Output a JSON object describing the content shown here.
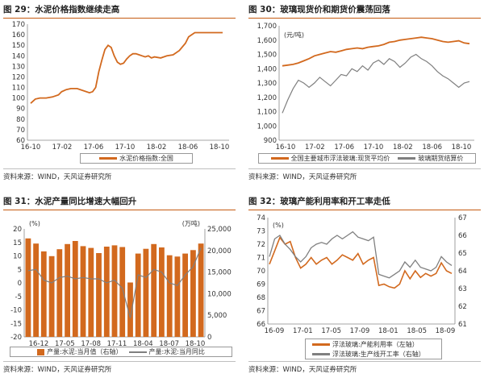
{
  "colors": {
    "orange": "#D2691E",
    "gray": "#7F7F7F",
    "accent_line": "#C55A11"
  },
  "panels": [
    {
      "title": "图 29：水泥价格指数继续走高",
      "source": "资料来源：WIND，天风证券研究所",
      "chart_data": {
        "type": "line",
        "ylim": [
          60,
          170
        ],
        "yticks": [
          "60",
          "70",
          "80",
          "90",
          "100",
          "110",
          "120",
          "130",
          "140",
          "150",
          "160",
          "170"
        ],
        "xticks": [
          "16-10",
          "17-02",
          "17-06",
          "17-10",
          "18-02",
          "18-06",
          "18-10"
        ],
        "series": [
          {
            "name": "水泥价格指数:全国",
            "color": "#D2691E",
            "x": [
              0,
              3,
              6,
              10,
              14,
              18,
              20,
              23,
              26,
              30,
              34,
              38,
              40,
              42,
              44,
              46,
              48,
              50,
              52,
              54,
              56,
              58,
              60,
              62,
              64,
              66,
              68,
              70,
              72,
              74,
              76,
              78,
              80,
              84,
              88,
              92,
              96,
              100,
              102,
              104,
              106,
              108,
              110,
              112,
              114,
              116,
              118,
              120,
              122,
              124
            ],
            "y": [
              95,
              99,
              100,
              100,
              101,
              103,
              106,
              108,
              109,
              109,
              107,
              105,
              106,
              110,
              125,
              136,
              146,
              150,
              148,
              140,
              134,
              132,
              133,
              137,
              140,
              142,
              142,
              141,
              140,
              139,
              140,
              138,
              139,
              138,
              140,
              141,
              145,
              152,
              158,
              160,
              162,
              162,
              162,
              162,
              162,
              162,
              162,
              162,
              162,
              162
            ]
          }
        ]
      }
    },
    {
      "title": "图 30：玻璃现货价和期货价震荡回落",
      "source": "资料来源：WIND，天风证券研究所",
      "chart_data": {
        "type": "line",
        "yunit": "(元/吨)",
        "ylim": [
          900,
          1700
        ],
        "yticks": [
          "900",
          "1,000",
          "1,100",
          "1,200",
          "1,300",
          "1,400",
          "1,500",
          "1,600",
          "1,700"
        ],
        "xticks": [
          "16-10",
          "17-02",
          "17-06",
          "17-10",
          "18-02",
          "18-06",
          "18-10"
        ],
        "series": [
          {
            "name": "全国主要城市浮法玻璃:现货平均价",
            "color": "#D2691E",
            "y": [
              1420,
              1425,
              1430,
              1440,
              1455,
              1470,
              1490,
              1500,
              1510,
              1520,
              1515,
              1525,
              1535,
              1540,
              1545,
              1540,
              1550,
              1555,
              1560,
              1570,
              1585,
              1590,
              1600,
              1605,
              1610,
              1615,
              1620,
              1615,
              1610,
              1600,
              1590,
              1585,
              1590,
              1595,
              1580,
              1575
            ]
          },
          {
            "name": "玻璃期货结算价",
            "color": "#7F7F7F",
            "y": [
              1090,
              1180,
              1260,
              1320,
              1300,
              1270,
              1300,
              1340,
              1310,
              1280,
              1320,
              1360,
              1350,
              1400,
              1380,
              1420,
              1390,
              1440,
              1460,
              1430,
              1470,
              1450,
              1410,
              1440,
              1480,
              1500,
              1470,
              1450,
              1420,
              1380,
              1350,
              1330,
              1300,
              1270,
              1300,
              1310
            ]
          }
        ]
      }
    },
    {
      "title": "图 31：水泥产量同比增速大幅回升",
      "source": "资料来源：WIND，天风证券研究所",
      "chart_data": {
        "type": "bar",
        "yunit_left": "(%)",
        "yunit_right": "(万吨)",
        "ylim_left": [
          -20,
          20
        ],
        "ylim_right": [
          0,
          25000
        ],
        "yticks_left": [
          "-20",
          "-15",
          "-10",
          "-5",
          "0",
          "5",
          "10",
          "15",
          "20"
        ],
        "yticks_right": [
          "0",
          "5,000",
          "10,000",
          "15,000",
          "20,000",
          "25,000"
        ],
        "xticks": [
          "16-12",
          "17-05",
          "17-08",
          "17-11",
          "18-04",
          "18-07",
          "18-10"
        ],
        "series": [
          {
            "name": "产量:水泥:当月值（右轴）",
            "color": "#D2691E",
            "axis": "right",
            "values": [
              22800,
              21600,
              19800,
              18700,
              20300,
              21500,
              22200,
              21000,
              20600,
              19400,
              20900,
              21200,
              20800,
              12600,
              19300,
              20400,
              21500,
              20700,
              18900,
              18600,
              19300,
              20100,
              21600
            ]
          },
          {
            "name": "产量:水泥:当月同比",
            "color": "#7F7F7F",
            "axis": "left",
            "values": [
              4.5,
              5,
              1,
              0,
              2,
              2.5,
              1.5,
              2,
              1.5,
              1.5,
              0,
              1,
              -2,
              -13,
              3,
              2,
              5,
              4,
              0,
              -1,
              3,
              6,
              13
            ]
          }
        ]
      }
    },
    {
      "title": "图 32：玻璃产能利用率和开工率走低",
      "source": "资料来源：WIND，天风证券研究所",
      "chart_data": {
        "type": "line",
        "yunit_left": "(%)",
        "ylim_left": [
          66,
          74
        ],
        "ylim_right": [
          61,
          67
        ],
        "yticks_left": [
          "66",
          "67",
          "68",
          "69",
          "70",
          "71",
          "72",
          "73",
          "74"
        ],
        "yticks_right": [
          "61",
          "62",
          "63",
          "64",
          "65",
          "66",
          "67"
        ],
        "xticks": [
          "16-09",
          "17-01",
          "17-05",
          "17-09",
          "18-01",
          "18-05",
          "18-09"
        ],
        "series": [
          {
            "name": "浮法玻璃:产能利用率（左轴）",
            "color": "#D2691E",
            "axis": "left",
            "y": [
              70.5,
              71.5,
              72.5,
              72,
              72.2,
              71,
              70.2,
              70.5,
              71,
              70.5,
              70.8,
              71,
              70.5,
              70.8,
              71.2,
              71,
              70.8,
              71.3,
              70.5,
              70.8,
              71,
              68.9,
              69,
              68.8,
              68.7,
              69,
              70,
              69.4,
              70,
              69.5,
              69.8,
              69.6,
              69.8,
              70.6,
              70,
              69.8
            ]
          },
          {
            "name": "浮法玻璃:生产线开工率（右轴）",
            "color": "#7F7F7F",
            "axis": "right",
            "y": [
              64.8,
              65.8,
              66,
              65.5,
              65.2,
              64.8,
              64.5,
              64.8,
              65.3,
              65.5,
              65.6,
              65.5,
              65.8,
              66,
              65.8,
              66,
              66.2,
              65.9,
              65.8,
              65.7,
              65.9,
              63.8,
              63.7,
              63.6,
              63.8,
              64,
              64.5,
              64.2,
              64.6,
              64.2,
              64.1,
              64,
              64.2,
              64.8,
              64.5,
              64.3
            ]
          }
        ]
      }
    }
  ]
}
